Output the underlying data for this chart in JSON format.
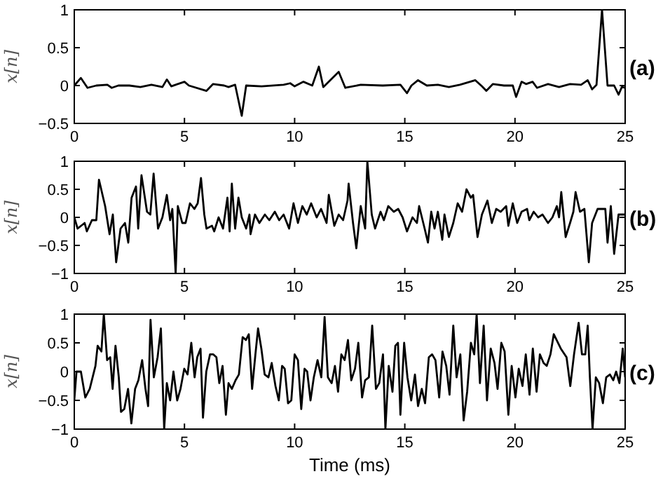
{
  "chart_data": [
    {
      "type": "line",
      "ylabel": "x[n]",
      "annotations": [
        "(a)"
      ],
      "xlim": [
        0,
        25
      ],
      "xticks": [
        0,
        5,
        10,
        15,
        20,
        25
      ],
      "ylim": [
        -0.5,
        1
      ],
      "yticks": [
        -0.5,
        0,
        0.5,
        1
      ],
      "series": [
        {
          "color": "#000000",
          "x": [
            0,
            0.3,
            0.6,
            1,
            1.5,
            1.7,
            2,
            2.5,
            3,
            3.5,
            4,
            4.2,
            4.4,
            5,
            5.2,
            6,
            6.3,
            6.8,
            7,
            7.3,
            7.6,
            7.8,
            8.5,
            9.5,
            9.8,
            10,
            10.4,
            10.8,
            11.1,
            11.3,
            12,
            12.3,
            13,
            14,
            14.8,
            15.1,
            15.3,
            15.6,
            16,
            16.5,
            17,
            17.5,
            18.2,
            18.5,
            18.7,
            19,
            19.5,
            19.9,
            20.05,
            20.3,
            20.5,
            20.8,
            21,
            21.5,
            22,
            22.5,
            23,
            23.3,
            23.5,
            23.7,
            23.95,
            24.2,
            24.5,
            24.7,
            24.85,
            25
          ],
          "values": [
            0,
            0.1,
            -0.03,
            0,
            0.01,
            -0.03,
            0,
            0,
            -0.02,
            0.01,
            -0.02,
            0.08,
            -0.01,
            0.05,
            0,
            -0.07,
            0.02,
            0,
            -0.02,
            0.01,
            -0.4,
            0,
            -0.01,
            0.01,
            0.03,
            -0.01,
            0.05,
            0,
            0.25,
            -0.02,
            0.18,
            -0.03,
            0.01,
            0,
            0.01,
            -0.1,
            0,
            0.07,
            0,
            0.01,
            -0.02,
            0.01,
            0.07,
            -0.01,
            -0.07,
            0.02,
            0,
            0,
            -0.15,
            0.05,
            0.02,
            0.05,
            -0.03,
            0.02,
            -0.02,
            0.02,
            0.01,
            0.07,
            -0.05,
            0.01,
            1,
            0,
            0,
            -0.12,
            -0.02,
            -0.03
          ]
        }
      ]
    },
    {
      "type": "line",
      "ylabel": "x[n]",
      "annotations": [
        "(b)"
      ],
      "xlim": [
        0,
        25
      ],
      "xticks": [
        0,
        5,
        10,
        15,
        20,
        25
      ],
      "ylim": [
        -1,
        1
      ],
      "yticks": [
        -1,
        -0.5,
        0,
        0.5,
        1
      ],
      "series": [
        {
          "color": "#000000",
          "x": [
            0,
            0.15,
            0.47,
            0.57,
            0.8,
            1.0,
            1.12,
            1.4,
            1.6,
            1.75,
            1.9,
            2.1,
            2.3,
            2.45,
            2.6,
            2.8,
            2.9,
            3.05,
            3.3,
            3.45,
            3.6,
            3.8,
            4.0,
            4.2,
            4.35,
            4.45,
            4.6,
            4.7,
            4.9,
            5.05,
            5.25,
            5.45,
            5.6,
            5.75,
            5.9,
            6.0,
            6.25,
            6.35,
            6.55,
            6.75,
            6.95,
            7.05,
            7.15,
            7.3,
            7.45,
            7.6,
            7.8,
            7.95,
            8.0,
            8.2,
            8.4,
            8.65,
            8.85,
            9.1,
            9.3,
            9.5,
            9.75,
            9.95,
            10.15,
            10.35,
            10.55,
            10.75,
            11.0,
            11.2,
            11.45,
            11.55,
            11.8,
            12.0,
            12.2,
            12.4,
            12.45,
            12.65,
            12.8,
            13.0,
            13.2,
            13.3,
            13.5,
            13.65,
            13.9,
            14.05,
            14.25,
            14.5,
            14.7,
            14.9,
            15.1,
            15.35,
            15.55,
            15.65,
            15.9,
            16.05,
            16.2,
            16.35,
            16.5,
            16.7,
            16.8,
            17.0,
            17.2,
            17.4,
            17.6,
            17.8,
            18.0,
            18.1,
            18.3,
            18.5,
            18.75,
            18.95,
            19.15,
            19.35,
            19.6,
            19.7,
            19.9,
            20.1,
            20.3,
            20.55,
            20.65,
            20.85,
            21.05,
            21.25,
            21.5,
            21.7,
            21.9,
            22.0,
            22.1,
            22.3,
            22.5,
            22.65,
            22.75,
            22.95,
            23.15,
            23.35,
            23.5,
            23.75,
            23.9,
            24.1,
            24.2,
            24.35,
            24.5,
            24.7,
            25
          ],
          "values": [
            0,
            -0.2,
            -0.1,
            -0.25,
            -0.05,
            -0.05,
            0.67,
            0.2,
            -0.3,
            0.05,
            -0.8,
            -0.2,
            -0.1,
            -0.45,
            0.35,
            0.55,
            -0.2,
            0.75,
            0.1,
            0.05,
            0.78,
            -0.2,
            0,
            0.4,
            -0.05,
            0.15,
            -1,
            0.2,
            -0.1,
            -0.1,
            0.25,
            0.15,
            0.25,
            0.7,
            0.05,
            -0.2,
            -0.15,
            -0.25,
            0,
            -0.2,
            0.35,
            -0.25,
            0.6,
            -0.2,
            0.35,
            0,
            -0.2,
            0.05,
            -0.3,
            0.05,
            -0.1,
            0.05,
            -0.05,
            0.1,
            -0.05,
            0.05,
            -0.2,
            0.25,
            -0.1,
            0.2,
            0.05,
            0.25,
            0,
            0.15,
            -0.1,
            0.4,
            -0.15,
            0.05,
            -0.05,
            0.3,
            0.6,
            -0.1,
            -0.55,
            0.2,
            -0.2,
            1,
            0.05,
            -0.2,
            0.1,
            -0.05,
            0.2,
            0.1,
            0.15,
            0,
            -0.25,
            0,
            -0.1,
            0.2,
            -0.2,
            -0.45,
            0.1,
            -0.2,
            0.1,
            -0.4,
            0.05,
            -0.35,
            -0.1,
            0.25,
            0.1,
            0.5,
            0.35,
            0.4,
            -0.35,
            0.05,
            0.3,
            -0.1,
            0.15,
            0.1,
            0.2,
            -0.15,
            0.25,
            -0.1,
            0.1,
            0.15,
            -0.05,
            0.1,
            0,
            0.05,
            -0.1,
            0,
            0.2,
            0,
            0.45,
            -0.35,
            -0.1,
            0.1,
            0.45,
            0.1,
            0.15,
            -0.8,
            -0.1,
            0.15,
            0.15,
            0.15,
            -0.45,
            0.2,
            -0.65,
            0.05,
            0.05
          ]
        }
      ]
    },
    {
      "type": "line",
      "xlabel": "Time (ms)",
      "ylabel": "x[n]",
      "annotations": [
        "(c)"
      ],
      "xlim": [
        0,
        25
      ],
      "xticks": [
        0,
        5,
        10,
        15,
        20,
        25
      ],
      "ylim": [
        -1,
        1
      ],
      "yticks": [
        -1,
        -0.5,
        0,
        0.5,
        1
      ],
      "series": [
        {
          "color": "#000000",
          "x": [
            0,
            0.1,
            0.3,
            0.5,
            0.7,
            0.96,
            1.06,
            1.23,
            1.34,
            1.49,
            1.63,
            1.74,
            1.87,
            2.02,
            2.12,
            2.27,
            2.44,
            2.59,
            2.76,
            2.91,
            3.08,
            3.23,
            3.35,
            3.46,
            3.61,
            3.78,
            3.93,
            4.08,
            4.2,
            4.35,
            4.5,
            4.67,
            4.82,
            4.99,
            5.14,
            5.31,
            5.46,
            5.58,
            5.73,
            5.84,
            5.99,
            6.16,
            6.31,
            6.45,
            6.58,
            6.73,
            6.88,
            7.0,
            7.15,
            7.32,
            7.47,
            7.64,
            7.79,
            7.92,
            8.07,
            8.22,
            8.34,
            8.49,
            8.64,
            8.81,
            8.96,
            9.13,
            9.28,
            9.43,
            9.55,
            9.7,
            9.85,
            10.0,
            10.15,
            10.3,
            10.45,
            10.57,
            10.72,
            10.87,
            11.04,
            11.21,
            11.36,
            11.51,
            11.68,
            11.83,
            11.97,
            12.12,
            12.27,
            12.42,
            12.57,
            12.74,
            12.89,
            13.06,
            13.2,
            13.37,
            13.52,
            13.69,
            13.84,
            14.01,
            14.12,
            14.27,
            14.44,
            14.57,
            14.69,
            14.8,
            14.97,
            15.12,
            15.29,
            15.46,
            15.6,
            15.77,
            15.92,
            16.09,
            16.24,
            16.39,
            16.56,
            16.71,
            16.88,
            17.03,
            17.2,
            17.35,
            17.52,
            17.67,
            17.83,
            18.0,
            18.15,
            18.26,
            18.41,
            18.58,
            18.73,
            18.9,
            19.07,
            19.21,
            19.38,
            19.53,
            19.7,
            19.85,
            20.02,
            20.17,
            20.34,
            20.49,
            20.66,
            20.81,
            20.98,
            21.13,
            21.3,
            21.44,
            21.61,
            21.76,
            22.08,
            22.34,
            22.51,
            22.68,
            22.89,
            23.04,
            23.19,
            23.3,
            23.4,
            23.52,
            23.67,
            23.82,
            23.99,
            24.14,
            24.31,
            24.46,
            24.59,
            24.74,
            24.89,
            25
          ],
          "values": [
            -0.5,
            0,
            0,
            -0.45,
            -0.3,
            0.1,
            0.45,
            0.35,
            1,
            0.2,
            0.25,
            -0.3,
            0.45,
            -0.1,
            -0.7,
            -0.65,
            -0.3,
            -0.9,
            -0.3,
            -0.15,
            0.2,
            -0.3,
            -0.6,
            0.9,
            -0.1,
            0.25,
            0.75,
            -1,
            -0.2,
            -0.5,
            0,
            -0.5,
            -0.3,
            0.05,
            -0.05,
            0.5,
            -0.1,
            0.25,
            0.4,
            -0.8,
            0,
            0.3,
            0.3,
            0.25,
            -0.2,
            0.1,
            -0.75,
            -0.2,
            -0.3,
            -0.15,
            -0.05,
            0.6,
            0.55,
            0.65,
            -0.3,
            0.3,
            0.75,
            0.4,
            -0.05,
            -0.1,
            0.15,
            -0.25,
            -0.5,
            0.1,
            0.05,
            -0.55,
            -0.5,
            0.3,
            0.2,
            -0.65,
            0.05,
            0,
            -0.5,
            -0.1,
            0.2,
            -0.1,
            0.95,
            -0.1,
            -0.2,
            0.1,
            -0.35,
            0.3,
            0.2,
            0.55,
            -0.15,
            0.05,
            0.5,
            -0.45,
            -0.15,
            -0.1,
            0.8,
            -0.3,
            -0.2,
            0.3,
            -1,
            0.1,
            -0.35,
            0.45,
            0.5,
            -0.75,
            0.5,
            -0.1,
            -0.5,
            -0.05,
            -0.6,
            -0.3,
            -0.55,
            0.25,
            0.3,
            0.2,
            -0.45,
            0.35,
            0.1,
            -0.4,
            0.8,
            -0.1,
            0.3,
            -0.85,
            -0.35,
            0.5,
            0.3,
            1,
            -0.2,
            0.8,
            -0.5,
            0.4,
            0.15,
            -0.3,
            0.5,
            0.35,
            -0.75,
            0.1,
            -0.45,
            0.05,
            -0.25,
            0.3,
            -0.4,
            0.4,
            -0.35,
            0.3,
            0.15,
            0.1,
            0.3,
            0.65,
            0.4,
            0.25,
            -0.25,
            0.3,
            0.85,
            0.3,
            0.3,
            0.8,
            -0.1,
            -1,
            -0.1,
            -0.2,
            -0.55,
            -0.1,
            -0.05,
            -0.15,
            0,
            -0.2,
            0.4,
            -0.1
          ]
        }
      ]
    }
  ]
}
